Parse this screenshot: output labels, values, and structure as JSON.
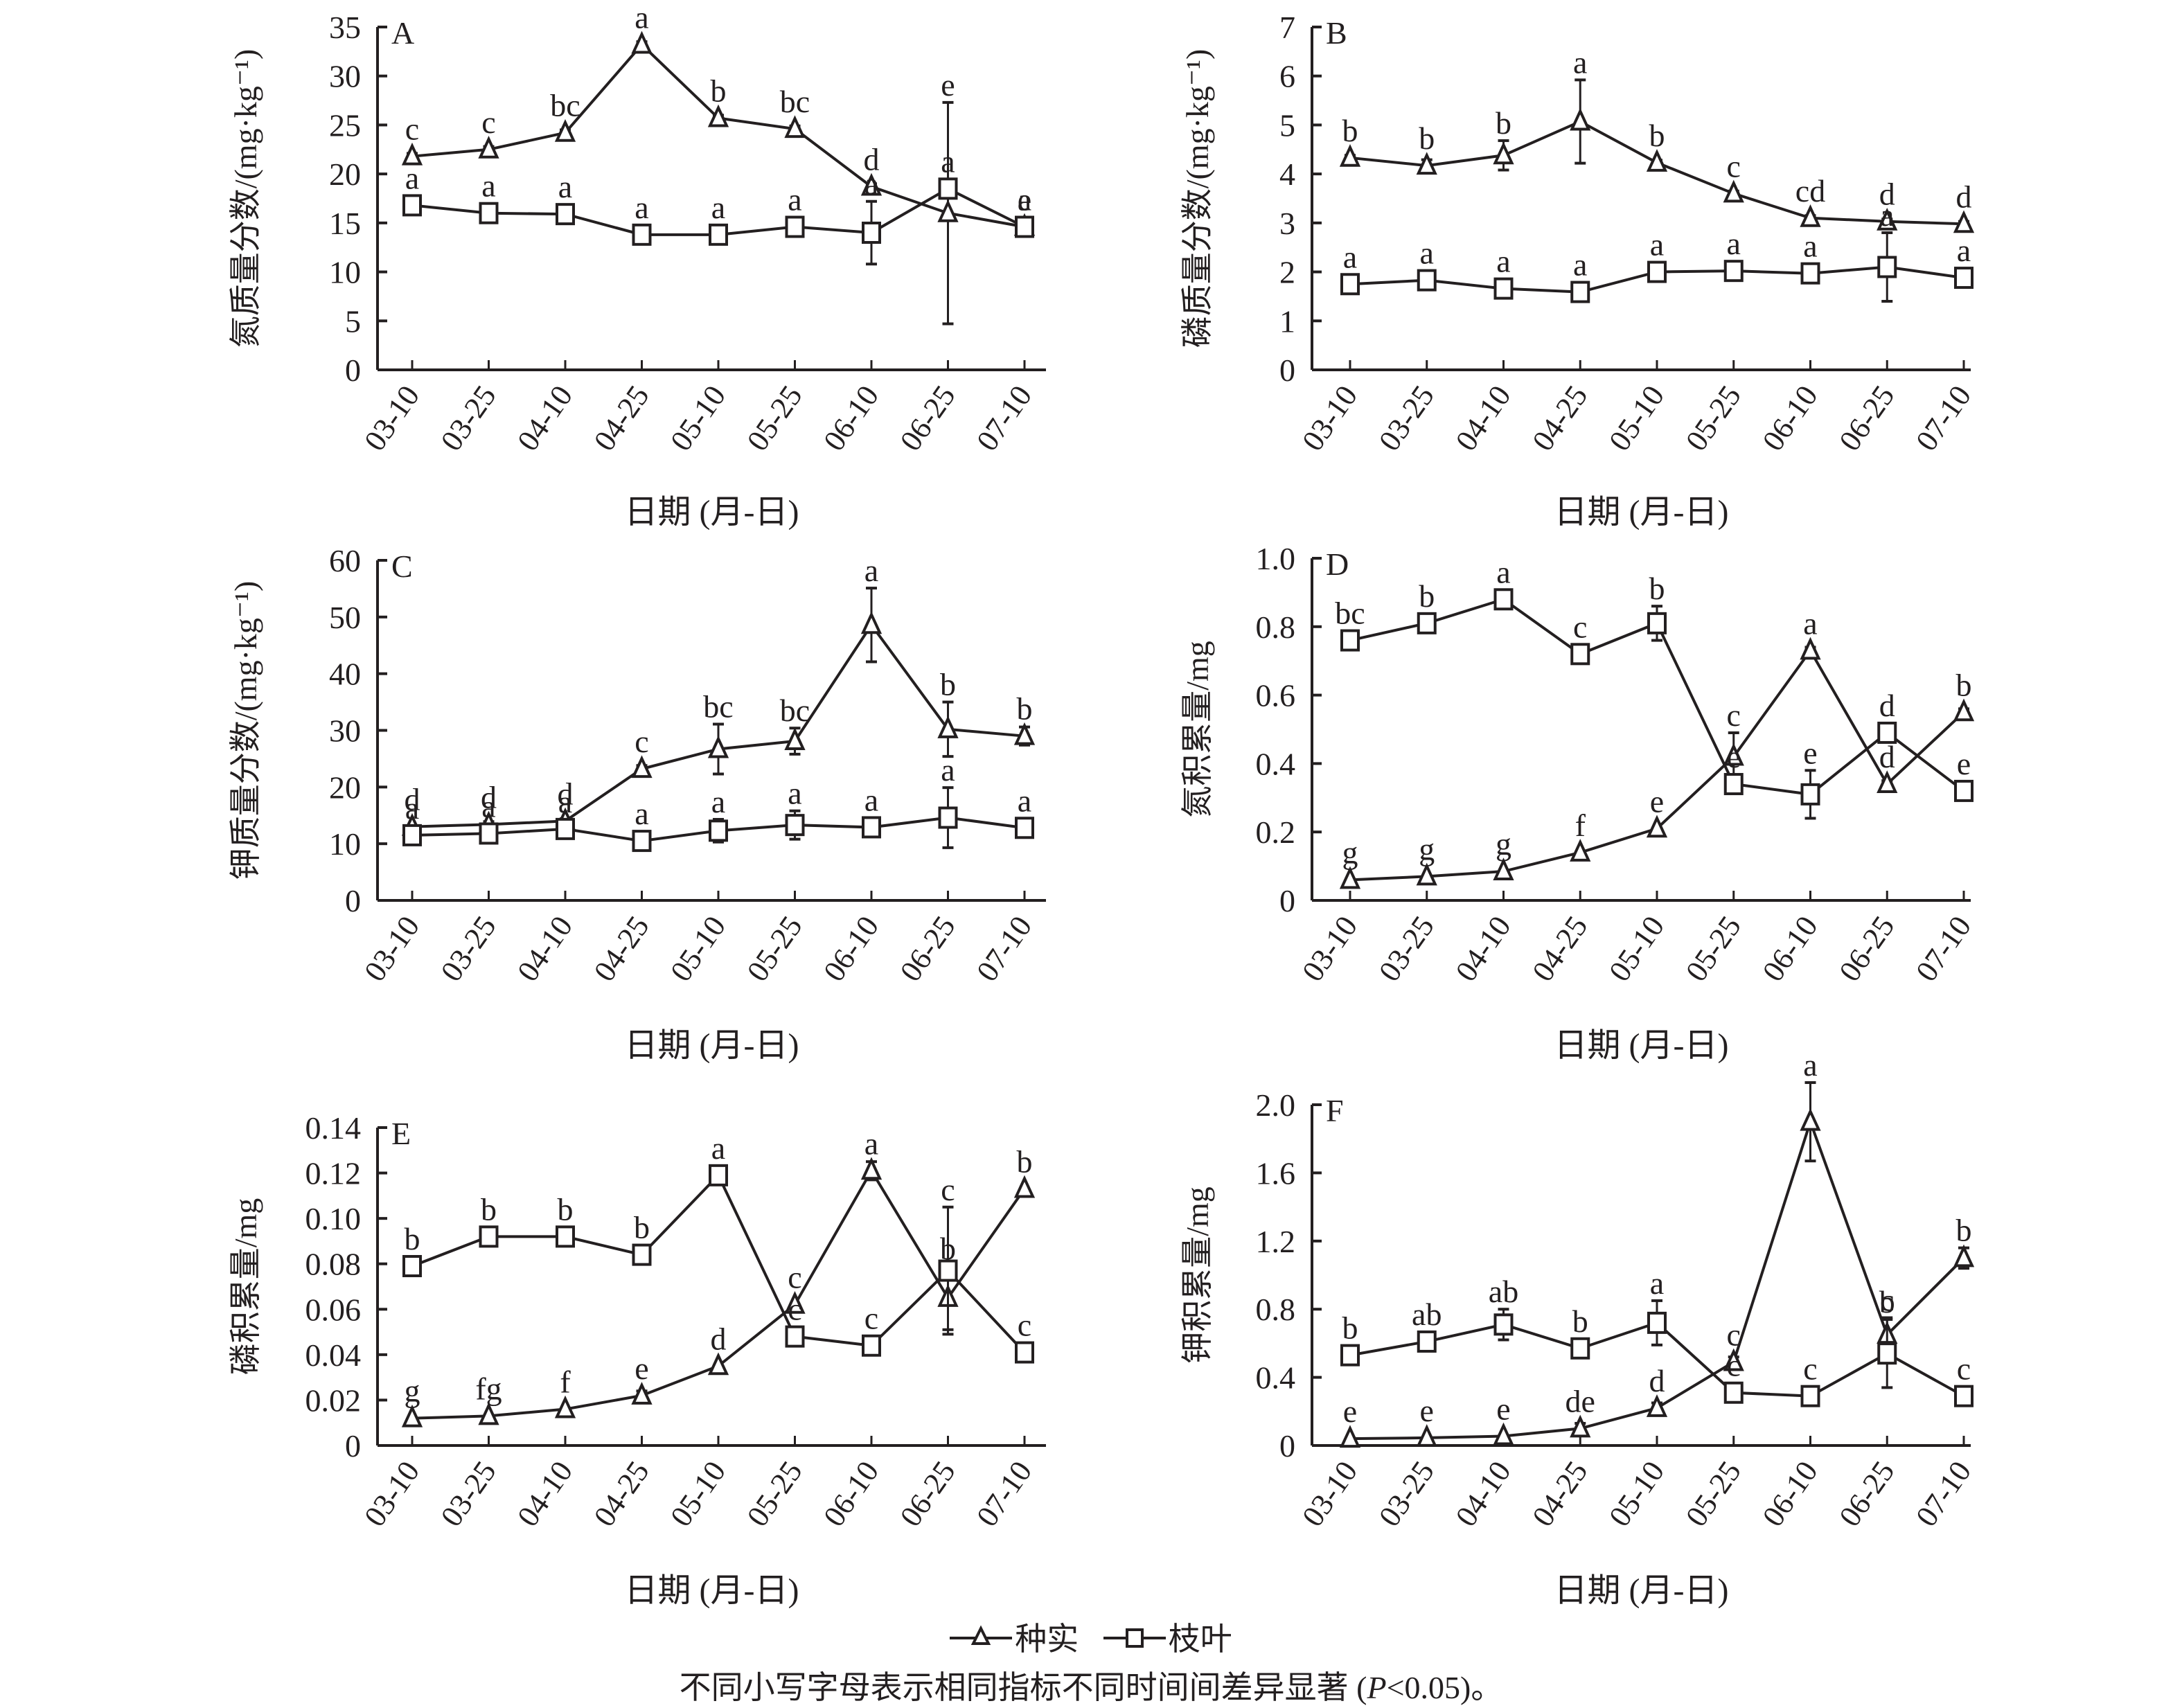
{
  "legend": {
    "series": [
      {
        "name": "种实",
        "marker": "triangle"
      },
      {
        "name": "枝叶",
        "marker": "square"
      }
    ]
  },
  "caption": {
    "prefix": "不同小写字母表示相同指标不同时间间差异显著 (",
    "p_symbol": "P",
    "suffix": "<0.05)。"
  },
  "colors": {
    "ink": "#231f20",
    "marker_fill": "#ffffff",
    "background": "#ffffff"
  },
  "chart_data": [
    {
      "panel": "A",
      "type": "line",
      "xlabel": "日期 (月-日)",
      "ylabel": "氮质量分数/(mg·kg⁻¹)",
      "categories": [
        "03-10",
        "03-25",
        "04-10",
        "04-25",
        "05-10",
        "05-25",
        "06-10",
        "06-25",
        "07-10"
      ],
      "ylim": [
        0,
        35
      ],
      "yticks": [
        0,
        5,
        10,
        15,
        20,
        25,
        30,
        35
      ],
      "ytick_labels": [
        "0",
        "5",
        "10",
        "15",
        "20",
        "25",
        "30",
        "35"
      ],
      "grid": false,
      "series": [
        {
          "name": "种实",
          "marker": "triangle",
          "values": [
            21.8,
            22.5,
            24.2,
            33.2,
            25.7,
            24.6,
            18.7,
            16.0,
            14.6
          ],
          "error": [
            0.3,
            0.3,
            0.3,
            0.3,
            0.3,
            0.3,
            0.3,
            11.3,
            0.3
          ],
          "letters": [
            "c",
            "c",
            "bc",
            "a",
            "b",
            "bc",
            "d",
            "e",
            "e"
          ]
        },
        {
          "name": "枝叶",
          "marker": "square",
          "values": [
            16.8,
            16.0,
            15.9,
            13.8,
            13.8,
            14.6,
            14.0,
            18.5,
            14.6
          ],
          "error": [
            0.3,
            0.3,
            0.3,
            0.3,
            0.4,
            0.3,
            3.2,
            0.3,
            0.3
          ],
          "letters": [
            "a",
            "a",
            "a",
            "a",
            "a",
            "a",
            "a",
            "a",
            "a"
          ]
        }
      ]
    },
    {
      "panel": "B",
      "type": "line",
      "xlabel": "日期 (月-日)",
      "ylabel": "磷质量分数/(mg·kg⁻¹)",
      "categories": [
        "03-10",
        "03-25",
        "04-10",
        "04-25",
        "05-10",
        "05-25",
        "06-10",
        "06-25",
        "07-10"
      ],
      "ylim": [
        0,
        7
      ],
      "yticks": [
        0,
        1,
        2,
        3,
        4,
        5,
        6,
        7
      ],
      "ytick_labels": [
        "0",
        "1",
        "2",
        "3",
        "4",
        "5",
        "6",
        "7"
      ],
      "grid": false,
      "series": [
        {
          "name": "种实",
          "marker": "triangle",
          "values": [
            4.33,
            4.17,
            4.38,
            5.07,
            4.23,
            3.6,
            3.1,
            3.03,
            2.98
          ],
          "error": [
            0.05,
            0.12,
            0.3,
            0.85,
            0.05,
            0.05,
            0.05,
            0.05,
            0.05
          ],
          "letters": [
            "b",
            "b",
            "b",
            "a",
            "b",
            "c",
            "cd",
            "d",
            "d"
          ]
        },
        {
          "name": "枝叶",
          "marker": "square",
          "values": [
            1.75,
            1.83,
            1.66,
            1.59,
            2.0,
            2.02,
            1.97,
            2.1,
            1.88
          ],
          "error": [
            0.05,
            0.05,
            0.05,
            0.05,
            0.05,
            0.05,
            0.05,
            0.7,
            0.05
          ],
          "letters": [
            "a",
            "a",
            "a",
            "a",
            "a",
            "a",
            "a",
            "a",
            "a"
          ]
        }
      ]
    },
    {
      "panel": "C",
      "type": "line",
      "xlabel": "日期 (月-日)",
      "ylabel": "钾质量分数/(mg·kg⁻¹)",
      "categories": [
        "03-10",
        "03-25",
        "04-10",
        "04-25",
        "05-10",
        "05-25",
        "06-10",
        "06-25",
        "07-10"
      ],
      "ylim": [
        0,
        60
      ],
      "yticks": [
        0,
        10,
        20,
        30,
        40,
        50,
        60
      ],
      "ytick_labels": [
        "0",
        "10",
        "20",
        "30",
        "40",
        "50",
        "60"
      ],
      "grid": false,
      "series": [
        {
          "name": "种实",
          "marker": "triangle",
          "values": [
            13.0,
            13.4,
            14.0,
            23.2,
            26.7,
            28.1,
            48.6,
            30.2,
            29.0
          ],
          "error": [
            0.3,
            0.5,
            0.4,
            0.6,
            4.4,
            2.3,
            6.5,
            4.8,
            1.6
          ],
          "letters": [
            "d",
            "d",
            "d",
            "c",
            "bc",
            "bc",
            "a",
            "b",
            "b"
          ]
        },
        {
          "name": "枝叶",
          "marker": "square",
          "values": [
            11.5,
            11.8,
            12.6,
            10.5,
            12.3,
            13.3,
            12.9,
            14.6,
            12.8
          ],
          "error": [
            0.3,
            0.3,
            0.3,
            0.3,
            2.0,
            2.5,
            0.3,
            5.3,
            0.3
          ],
          "letters": [
            "a",
            "a",
            "a",
            "a",
            "a",
            "a",
            "a",
            "a",
            "a"
          ]
        }
      ]
    },
    {
      "panel": "D",
      "type": "line",
      "xlabel": "日期 (月-日)",
      "ylabel": "氮积累量/mg",
      "categories": [
        "03-10",
        "03-25",
        "04-10",
        "04-25",
        "05-10",
        "05-25",
        "06-10",
        "06-25",
        "07-10"
      ],
      "ylim": [
        0,
        1.0
      ],
      "yticks": [
        0,
        0.2,
        0.4,
        0.6,
        0.8,
        1.0
      ],
      "ytick_labels": [
        "0",
        "0.2",
        "0.4",
        "0.6",
        "0.8",
        "1.0"
      ],
      "grid": false,
      "series": [
        {
          "name": "种实",
          "marker": "triangle",
          "values": [
            0.06,
            0.07,
            0.085,
            0.14,
            0.21,
            0.42,
            0.73,
            0.34,
            0.55
          ],
          "error": [
            0.005,
            0.005,
            0.005,
            0.005,
            0.005,
            0.07,
            0.01,
            0.01,
            0.01
          ],
          "letters": [
            "g",
            "g",
            "g",
            "f",
            "e",
            "c",
            "a",
            "d",
            "b"
          ]
        },
        {
          "name": "枝叶",
          "marker": "square",
          "values": [
            0.76,
            0.81,
            0.88,
            0.72,
            0.81,
            0.34,
            0.31,
            0.49,
            0.32
          ],
          "error": [
            0.01,
            0.01,
            0.01,
            0.01,
            0.05,
            0.01,
            0.07,
            0.02,
            0.01
          ],
          "letters": [
            "bc",
            "b",
            "a",
            "c",
            "b",
            "e",
            "e",
            "d",
            "e"
          ]
        }
      ]
    },
    {
      "panel": "E",
      "type": "line",
      "xlabel": "日期 (月-日)",
      "ylabel": "磷积累量/mg",
      "categories": [
        "03-10",
        "03-25",
        "04-10",
        "04-25",
        "05-10",
        "05-25",
        "06-10",
        "06-25",
        "07-10"
      ],
      "ylim": [
        0,
        0.14
      ],
      "yticks": [
        0,
        0.02,
        0.04,
        0.06,
        0.08,
        0.1,
        0.12,
        0.14
      ],
      "ytick_labels": [
        "0",
        "0.02",
        "0.04",
        "0.06",
        "0.08",
        "0.10",
        "0.12",
        "0.14"
      ],
      "grid": false,
      "series": [
        {
          "name": "种实",
          "marker": "triangle",
          "values": [
            0.012,
            0.013,
            0.016,
            0.022,
            0.035,
            0.062,
            0.121,
            0.065,
            0.113
          ],
          "error": [
            0.0005,
            0.0005,
            0.0005,
            0.002,
            0.0005,
            0.0005,
            0.004,
            0.014,
            0.0005
          ],
          "letters": [
            "g",
            "fg",
            "f",
            "e",
            "d",
            "c",
            "a",
            "b",
            "b"
          ]
        },
        {
          "name": "枝叶",
          "marker": "square",
          "values": [
            0.079,
            0.092,
            0.092,
            0.084,
            0.119,
            0.048,
            0.044,
            0.077,
            0.041
          ],
          "error": [
            0.002,
            0.001,
            0.001,
            0.001,
            0.004,
            0.001,
            0.001,
            0.028,
            0.001
          ],
          "letters": [
            "b",
            "b",
            "b",
            "b",
            "a",
            "c",
            "c",
            "c",
            "c"
          ]
        }
      ]
    },
    {
      "panel": "F",
      "type": "line",
      "xlabel": "日期 (月-日)",
      "ylabel": "钾积累量/mg",
      "categories": [
        "03-10",
        "03-25",
        "04-10",
        "04-25",
        "05-10",
        "05-25",
        "06-10",
        "06-25",
        "07-10"
      ],
      "ylim": [
        0,
        2.0
      ],
      "yticks": [
        0,
        0.4,
        0.8,
        1.2,
        1.6,
        2.0
      ],
      "ytick_labels": [
        "0",
        "0.4",
        "0.8",
        "1.2",
        "1.6",
        "2.0"
      ],
      "grid": false,
      "series": [
        {
          "name": "种实",
          "marker": "triangle",
          "values": [
            0.04,
            0.045,
            0.055,
            0.1,
            0.22,
            0.49,
            1.9,
            0.65,
            1.1
          ],
          "error": [
            0.005,
            0.005,
            0.005,
            0.03,
            0.03,
            0.03,
            0.23,
            0.1,
            0.06
          ],
          "letters": [
            "e",
            "e",
            "e",
            "de",
            "d",
            "c",
            "a",
            "c",
            "b"
          ]
        },
        {
          "name": "枝叶",
          "marker": "square",
          "values": [
            0.53,
            0.61,
            0.71,
            0.57,
            0.72,
            0.31,
            0.29,
            0.54,
            0.29
          ],
          "error": [
            0.01,
            0.01,
            0.09,
            0.01,
            0.13,
            0.03,
            0.01,
            0.2,
            0.01
          ],
          "letters": [
            "b",
            "ab",
            "ab",
            "b",
            "a",
            "c",
            "c",
            "b",
            "c"
          ]
        }
      ]
    }
  ]
}
